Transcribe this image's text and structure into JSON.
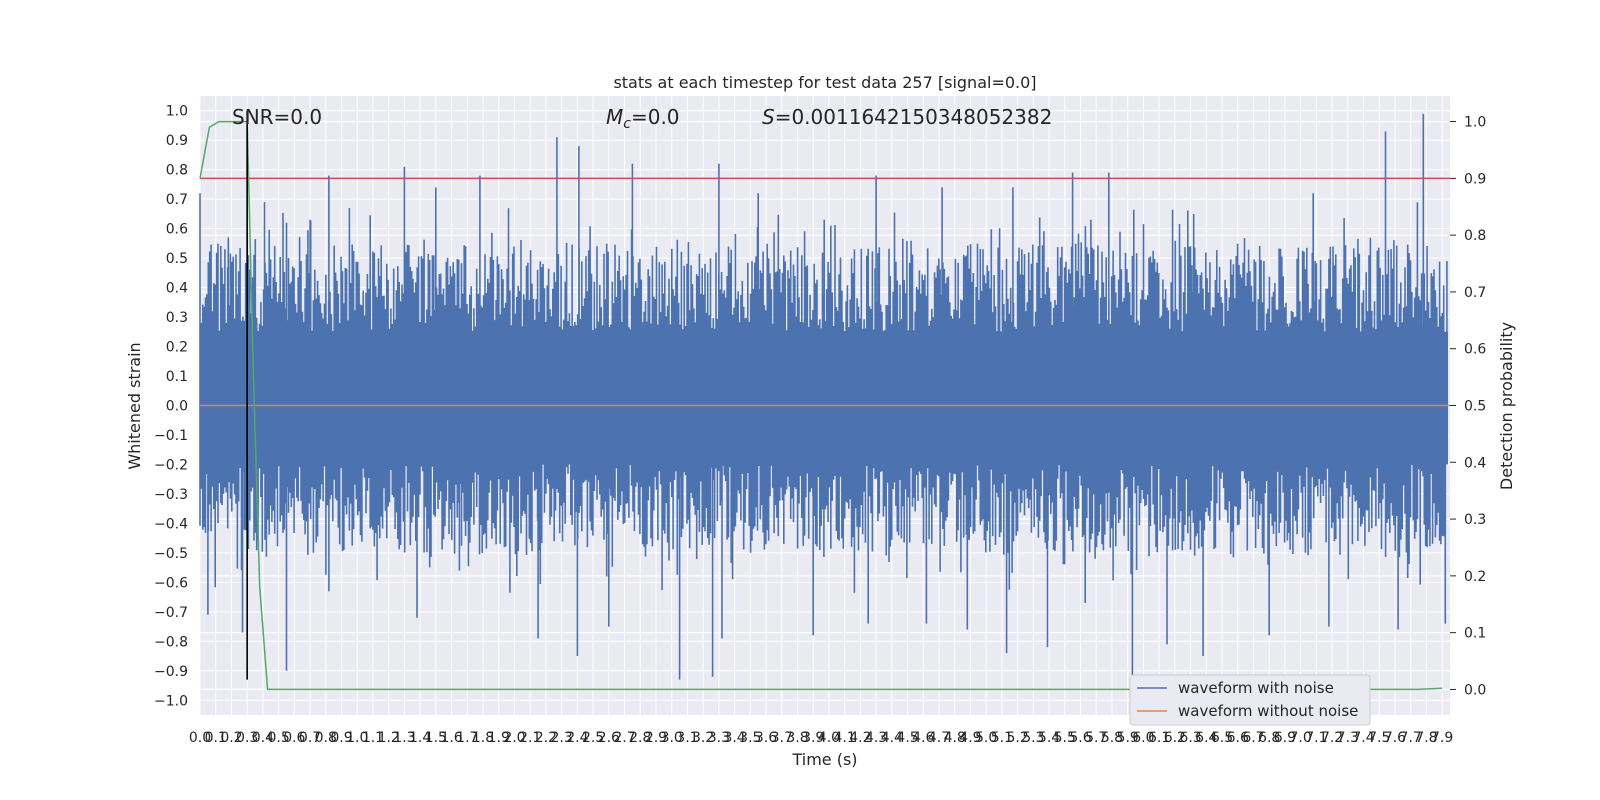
{
  "chart_data": {
    "type": "line",
    "title": "stats at each timestep for test data 257 [signal=0.0]",
    "xlabel": "Time (s)",
    "ylabel": "Whitened strain",
    "y2label": "Detection probability",
    "xlim": [
      0.0,
      7.95
    ],
    "ylim": [
      -1.05,
      1.05
    ],
    "y2lim": [
      -0.045,
      1.045
    ],
    "x_ticks": [
      "0.0",
      "0.1",
      "0.2",
      "0.3",
      "0.4",
      "0.5",
      "0.6",
      "0.7",
      "0.8",
      "0.9",
      "1.0",
      "1.1",
      "1.2",
      "1.3",
      "1.4",
      "1.5",
      "1.6",
      "1.7",
      "1.8",
      "1.9",
      "2.0",
      "2.1",
      "2.2",
      "2.3",
      "2.4",
      "2.5",
      "2.6",
      "2.7",
      "2.8",
      "2.9",
      "3.0",
      "3.1",
      "3.2",
      "3.3",
      "3.4",
      "3.5",
      "3.6",
      "3.7",
      "3.8",
      "3.9",
      "4.0",
      "4.1",
      "4.2",
      "4.3",
      "4.4",
      "4.5",
      "4.6",
      "4.7",
      "4.8",
      "4.9",
      "5.0",
      "5.1",
      "5.2",
      "5.3",
      "5.4",
      "5.5",
      "5.6",
      "5.7",
      "5.8",
      "5.9",
      "6.0",
      "6.1",
      "6.2",
      "6.3",
      "6.4",
      "6.5",
      "6.6",
      "6.7",
      "6.8",
      "6.9",
      "7.0",
      "7.1",
      "7.2",
      "7.3",
      "7.4",
      "7.5",
      "7.6",
      "7.7",
      "7.8",
      "7.9"
    ],
    "y_ticks": [
      "1.0",
      "0.9",
      "0.8",
      "0.7",
      "0.6",
      "0.5",
      "0.4",
      "0.3",
      "0.2",
      "0.1",
      "0.0",
      "−0.1",
      "−0.2",
      "−0.3",
      "−0.4",
      "−0.5",
      "−0.6",
      "−0.7",
      "−0.8",
      "−0.9",
      "−1.0"
    ],
    "y2_ticks": [
      "1.0",
      "0.9",
      "0.8",
      "0.7",
      "0.6",
      "0.5",
      "0.4",
      "0.3",
      "0.2",
      "0.1",
      "0.0"
    ],
    "annotations": {
      "snr": "SNR=0.0",
      "mc": "=0.0",
      "mc_symbol": "M",
      "mc_sub": "c",
      "s": "=0.0011642150348052382",
      "s_symbol": "S"
    },
    "threshold_line": {
      "y2": 0.9,
      "color": "#c44e52"
    },
    "marker_line": {
      "x": 0.3,
      "y_from": -0.93,
      "y_to": 1.0,
      "color": "#000000"
    },
    "series": [
      {
        "name": "waveform with noise",
        "color": "#4c72b0",
        "axis": "left",
        "envelope": {
          "typical_upper": 0.25,
          "typical_lower": -0.2,
          "spikes": [
            [
              0.0,
              0.72
            ],
            [
              0.18,
              0.57
            ],
            [
              0.3,
              0.97
            ],
            [
              0.41,
              0.69
            ],
            [
              0.55,
              0.62
            ],
            [
              0.7,
              0.63
            ],
            [
              0.82,
              0.78
            ],
            [
              0.95,
              0.67
            ],
            [
              1.3,
              0.81
            ],
            [
              1.5,
              0.74
            ],
            [
              1.78,
              0.78
            ],
            [
              2.27,
              0.91
            ],
            [
              2.41,
              0.88
            ],
            [
              2.75,
              0.82
            ],
            [
              3.3,
              0.82
            ],
            [
              3.55,
              0.72
            ],
            [
              3.97,
              0.63
            ],
            [
              4.3,
              0.68
            ],
            [
              4.3,
              0.78
            ],
            [
              4.72,
              0.74
            ],
            [
              5.17,
              0.74
            ],
            [
              5.55,
              0.79
            ],
            [
              5.78,
              0.79
            ],
            [
              6.32,
              0.65
            ],
            [
              7.08,
              0.72
            ],
            [
              7.54,
              0.93
            ],
            [
              7.78,
              0.99
            ],
            [
              7.93,
              0.49
            ],
            [
              0.05,
              -0.71
            ],
            [
              0.27,
              -0.77
            ],
            [
              0.55,
              -0.9
            ],
            [
              0.82,
              -0.63
            ],
            [
              1.38,
              -0.72
            ],
            [
              1.65,
              -0.56
            ],
            [
              2.15,
              -0.79
            ],
            [
              2.4,
              -0.85
            ],
            [
              2.6,
              -0.75
            ],
            [
              3.05,
              -0.93
            ],
            [
              3.26,
              -0.92
            ],
            [
              3.32,
              -0.79
            ],
            [
              3.9,
              -0.78
            ],
            [
              4.25,
              -0.74
            ],
            [
              4.62,
              -0.74
            ],
            [
              4.88,
              -0.76
            ],
            [
              5.13,
              -0.84
            ],
            [
              5.39,
              -0.82
            ],
            [
              5.63,
              -0.67
            ],
            [
              5.93,
              -0.92
            ],
            [
              6.15,
              -0.81
            ],
            [
              6.38,
              -0.85
            ],
            [
              6.8,
              -0.78
            ],
            [
              7.18,
              -0.75
            ],
            [
              7.62,
              -0.76
            ],
            [
              7.92,
              -0.74
            ]
          ]
        }
      },
      {
        "name": "waveform without noise",
        "color": "#dd8452",
        "axis": "left",
        "x": [
          0.0,
          7.95
        ],
        "y": [
          0.0,
          0.0
        ]
      },
      {
        "name": "",
        "color": "#55a868",
        "axis": "right",
        "x": [
          0.0,
          0.06,
          0.12,
          0.2,
          0.3,
          0.34,
          0.38,
          0.43,
          0.5,
          1.0,
          2.0,
          3.0,
          4.0,
          5.0,
          6.0,
          7.0,
          7.75,
          7.9
        ],
        "y": [
          0.9,
          0.99,
          1.0,
          1.0,
          1.0,
          0.55,
          0.18,
          0.0,
          0.0,
          0.0,
          0.0,
          0.0,
          0.0,
          0.0,
          0.0,
          0.0,
          0.0,
          0.002
        ]
      }
    ],
    "legend": {
      "placement": "lower-right"
    },
    "grid": true
  },
  "colors": {
    "plot_background": "#eaeaf2",
    "grid": "#ffffff"
  }
}
